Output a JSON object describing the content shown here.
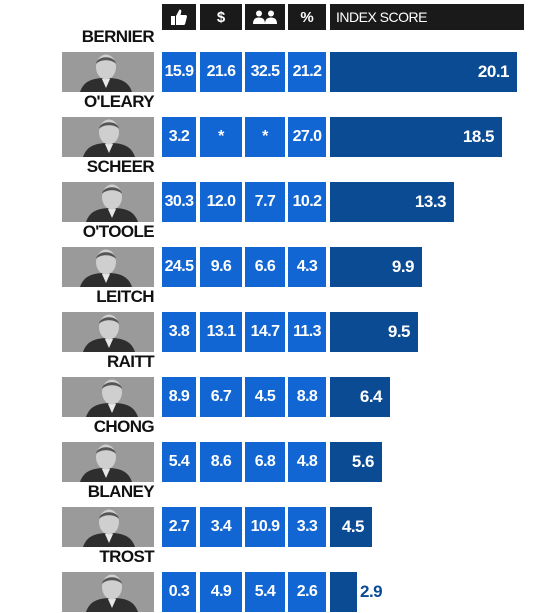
{
  "header": {
    "icons": [
      "thumbs-up-icon",
      "dollar-icon",
      "people-icon",
      "percent-icon"
    ],
    "dollar_symbol": "$",
    "percent_symbol": "%",
    "index_label": "INDEX SCORE"
  },
  "chart_data": {
    "type": "bar",
    "orientation": "horizontal",
    "title": "",
    "categories": [
      "BERNIER",
      "O'LEARY",
      "SCHEER",
      "O'TOOLE",
      "LEITCH",
      "RAITT",
      "CHONG",
      "BLANEY",
      "TROST"
    ],
    "table_columns": [
      "thumbs-up",
      "$",
      "people",
      "%"
    ],
    "table_values": [
      [
        "15.9",
        "21.6",
        "32.5",
        "21.2"
      ],
      [
        "3.2",
        "*",
        "*",
        "27.0"
      ],
      [
        "30.3",
        "12.0",
        "7.7",
        "10.2"
      ],
      [
        "24.5",
        "9.6",
        "6.6",
        "4.3"
      ],
      [
        "3.8",
        "13.1",
        "14.7",
        "11.3"
      ],
      [
        "8.9",
        "6.7",
        "4.5",
        "8.8"
      ],
      [
        "5.4",
        "8.6",
        "6.8",
        "4.8"
      ],
      [
        "2.7",
        "3.4",
        "10.9",
        "3.3"
      ],
      [
        "0.3",
        "4.9",
        "5.4",
        "2.6"
      ]
    ],
    "series": [
      {
        "name": "INDEX SCORE",
        "values": [
          20.1,
          18.5,
          13.3,
          9.9,
          9.5,
          6.4,
          5.6,
          4.5,
          2.9
        ]
      }
    ],
    "value_labels": [
      "20.1",
      "18.5",
      "13.3",
      "9.9",
      "9.5",
      "6.4",
      "5.6",
      "4.5",
      "2.9"
    ],
    "xlim": [
      0,
      20.1
    ],
    "colors": {
      "cells": "#1266d3",
      "bars": "#0b4b93",
      "header": "#1a1a1a",
      "photo_bg": "#9a9a9a"
    },
    "grid": false,
    "legend": "none"
  }
}
